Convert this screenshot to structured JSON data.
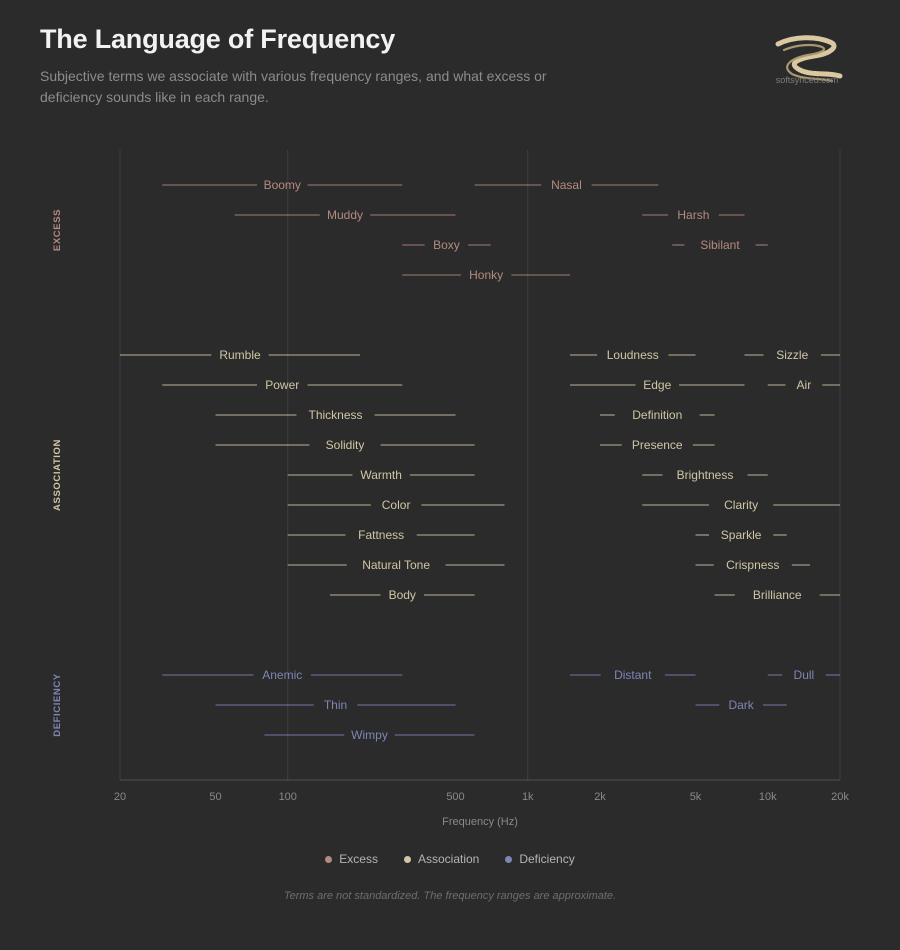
{
  "title": "The Language of Frequency",
  "subtitle": "Subjective terms we associate with various frequency ranges, and what excess or deficiency sounds like in each range.",
  "logo_text": "softsynced.com",
  "footnote": "Terms are not standardized. The frequency ranges are approximate.",
  "colors": {
    "background": "#2b2b2b",
    "excess": "#b58a80",
    "association": "#d1c6a5",
    "deficiency": "#7f86b4"
  },
  "legend": [
    {
      "label": "Excess",
      "group": "excess"
    },
    {
      "label": "Association",
      "group": "association"
    },
    {
      "label": "Deficiency",
      "group": "deficiency"
    }
  ],
  "chart_data": {
    "type": "range",
    "xlabel": "Frequency (Hz)",
    "xscale": "log",
    "xlim": [
      20,
      20000
    ],
    "xticks": [
      {
        "value": 20,
        "label": "20"
      },
      {
        "value": 50,
        "label": "50"
      },
      {
        "value": 100,
        "label": "100"
      },
      {
        "value": 500,
        "label": "500"
      },
      {
        "value": 1000,
        "label": "1k"
      },
      {
        "value": 2000,
        "label": "2k"
      },
      {
        "value": 5000,
        "label": "5k"
      },
      {
        "value": 10000,
        "label": "10k"
      },
      {
        "value": 20000,
        "label": "20k"
      }
    ],
    "major_gridlines": [
      100,
      1000
    ],
    "groups": [
      {
        "key": "excess",
        "label": "EXCESS",
        "rows": [
          [
            {
              "term": "Boomy",
              "low": 30,
              "high": 300
            },
            {
              "term": "Nasal",
              "low": 600,
              "high": 3500
            }
          ],
          [
            {
              "term": "Muddy",
              "low": 60,
              "high": 500
            },
            {
              "term": "Harsh",
              "low": 3000,
              "high": 8000
            }
          ],
          [
            {
              "term": "Boxy",
              "low": 300,
              "high": 700
            },
            {
              "term": "Sibilant",
              "low": 4000,
              "high": 10000
            }
          ],
          [
            {
              "term": "Honky",
              "low": 300,
              "high": 1500
            }
          ]
        ]
      },
      {
        "key": "association",
        "label": "ASSOCIATION",
        "rows": [
          [
            {
              "term": "Rumble",
              "low": 20,
              "high": 200
            },
            {
              "term": "Loudness",
              "low": 1500,
              "high": 5000
            },
            {
              "term": "Sizzle",
              "low": 8000,
              "high": 20000
            }
          ],
          [
            {
              "term": "Power",
              "low": 30,
              "high": 300
            },
            {
              "term": "Edge",
              "low": 1500,
              "high": 8000
            },
            {
              "term": "Air",
              "low": 10000,
              "high": 20000
            }
          ],
          [
            {
              "term": "Thickness",
              "low": 50,
              "high": 500
            },
            {
              "term": "Definition",
              "low": 2000,
              "high": 6000
            }
          ],
          [
            {
              "term": "Solidity",
              "low": 50,
              "high": 600
            },
            {
              "term": "Presence",
              "low": 2000,
              "high": 6000
            }
          ],
          [
            {
              "term": "Warmth",
              "low": 100,
              "high": 600
            },
            {
              "term": "Brightness",
              "low": 3000,
              "high": 10000
            }
          ],
          [
            {
              "term": "Color",
              "low": 100,
              "high": 800
            },
            {
              "term": "Clarity",
              "low": 3000,
              "high": 20000
            }
          ],
          [
            {
              "term": "Fattness",
              "low": 100,
              "high": 600
            },
            {
              "term": "Sparkle",
              "low": 5000,
              "high": 12000
            }
          ],
          [
            {
              "term": "Natural Tone",
              "low": 100,
              "high": 800
            },
            {
              "term": "Crispness",
              "low": 5000,
              "high": 15000
            }
          ],
          [
            {
              "term": "Body",
              "low": 150,
              "high": 600
            },
            {
              "term": "Brilliance",
              "low": 6000,
              "high": 20000
            }
          ]
        ]
      },
      {
        "key": "deficiency",
        "label": "DEFICIENCY",
        "rows": [
          [
            {
              "term": "Anemic",
              "low": 30,
              "high": 300
            },
            {
              "term": "Distant",
              "low": 1500,
              "high": 5000
            },
            {
              "term": "Dull",
              "low": 10000,
              "high": 20000
            }
          ],
          [
            {
              "term": "Thin",
              "low": 50,
              "high": 500
            },
            {
              "term": "Dark",
              "low": 5000,
              "high": 12000
            }
          ],
          [
            {
              "term": "Wimpy",
              "low": 80,
              "high": 600
            }
          ]
        ]
      }
    ]
  }
}
